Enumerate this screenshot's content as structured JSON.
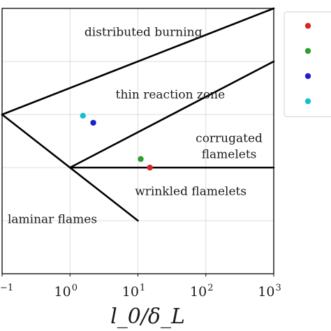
{
  "chart_data": {
    "type": "scatter",
    "title": "",
    "xscale": "log",
    "yscale": "log",
    "xlim": [
      0.1,
      1000
    ],
    "ylim": [
      0.01,
      1000
    ],
    "xlabel": "l_0/δ_L",
    "ylabel": "",
    "grid": true,
    "legend_placement": "right, outside plot",
    "x_ticks": [
      {
        "base": "10",
        "exp": "−1"
      },
      {
        "base": "10",
        "exp": "0"
      },
      {
        "base": "10",
        "exp": "1"
      },
      {
        "base": "10",
        "exp": "2"
      },
      {
        "base": "10",
        "exp": "3"
      }
    ],
    "boundary_lines": [
      {
        "x": [
          0.1,
          1000
        ],
        "y": [
          10,
          1000
        ]
      },
      {
        "x": [
          1,
          1000
        ],
        "y": [
          1,
          100
        ]
      },
      {
        "x": [
          1,
          1000
        ],
        "y": [
          1,
          1
        ]
      },
      {
        "x": [
          0.1,
          10
        ],
        "y": [
          10,
          0.1
        ]
      }
    ],
    "regions": [
      {
        "label": "distributed burning",
        "x": 12,
        "y": 300
      },
      {
        "label": "thin reaction zone",
        "x": 30,
        "y": 20
      },
      {
        "label": "corrugated",
        "x": 220,
        "y": 3.0
      },
      {
        "label": "flamelets",
        "x": 220,
        "y": 1.5
      },
      {
        "label": "wrinkled flamelets",
        "x": 60,
        "y": 0.3
      },
      {
        "label": "laminar flames",
        "x": 0.55,
        "y": 0.09
      }
    ],
    "series": [
      {
        "color": "#d62728",
        "x": [
          15
        ],
        "y": [
          1.0
        ]
      },
      {
        "color": "#2ca02c",
        "x": [
          11
        ],
        "y": [
          1.45
        ]
      },
      {
        "color": "#1f1fcc",
        "x": [
          2.2
        ],
        "y": [
          7.0
        ]
      },
      {
        "color": "#17becf",
        "x": [
          1.55
        ],
        "y": [
          9.5
        ]
      }
    ]
  }
}
